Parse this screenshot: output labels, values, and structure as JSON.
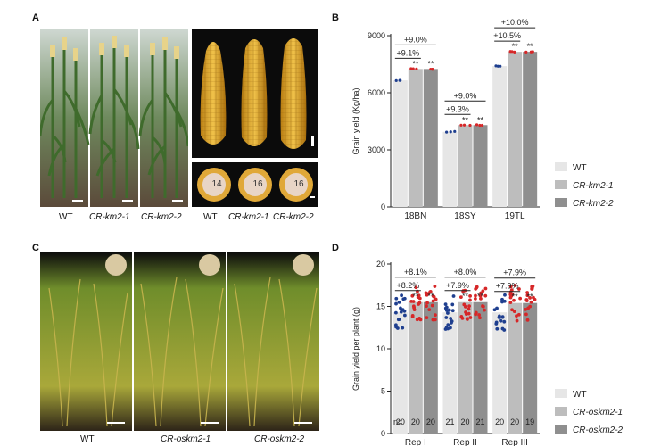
{
  "panels": {
    "A": {
      "letter": "A",
      "plant_labels": [
        "WT",
        "CR-km2-1",
        "CR-km2-2"
      ],
      "ear_labels": [
        "WT",
        "CR-km2-1",
        "CR-km2-2"
      ],
      "row_counts": [
        "14",
        "16",
        "16"
      ]
    },
    "C": {
      "letter": "C",
      "plant_labels": [
        "WT",
        "CR-oskm2-1",
        "CR-oskm2-2"
      ]
    }
  },
  "chart_data": [
    {
      "panel": "B",
      "type": "bar",
      "ylabel": "Grain yield (Kg/ha)",
      "ylim": [
        0,
        9000
      ],
      "yticks": [
        "0",
        "3000",
        "6000",
        "9000"
      ],
      "categories": [
        "18BN",
        "18SY",
        "19TL"
      ],
      "series": [
        {
          "name": "WT",
          "values": [
            6650,
            3950,
            7400
          ],
          "color": "#e6e6e6",
          "dot": "#1f3f8f"
        },
        {
          "name": "CR-km2-1",
          "values": [
            7250,
            4300,
            8150
          ],
          "color": "#bdbdbd",
          "dot": "#d62728"
        },
        {
          "name": "CR-km2-2",
          "values": [
            7250,
            4300,
            8150
          ],
          "color": "#8f8f8f",
          "dot": "#d62728"
        }
      ],
      "annotations": [
        {
          "group": "18BN",
          "top": "+9.0%",
          "bottom": "+9.1%",
          "stars": [
            "**",
            "**"
          ]
        },
        {
          "group": "18SY",
          "top": "+9.0%",
          "bottom": "+9.3%",
          "stars": [
            "**",
            "**"
          ]
        },
        {
          "group": "19TL",
          "top": "+10.0%",
          "bottom": "+10.5%",
          "stars": [
            "**",
            "**"
          ]
        }
      ],
      "legend_position": "right"
    },
    {
      "panel": "D",
      "type": "bar",
      "ylabel": "Grain yield per plant (g)",
      "ylim": [
        0,
        20
      ],
      "yticks": [
        "0",
        "5",
        "10",
        "15",
        "20"
      ],
      "categories": [
        "Rep I",
        "Rep II",
        "Rep III"
      ],
      "series": [
        {
          "name": "WT",
          "values": [
            14.3,
            14.3,
            14.3
          ],
          "color": "#e6e6e6",
          "dot": "#1f3f8f"
        },
        {
          "name": "CR-oskm2-1",
          "values": [
            15.5,
            15.5,
            15.4
          ],
          "color": "#bdbdbd",
          "dot": "#d62728"
        },
        {
          "name": "CR-oskm2-2",
          "values": [
            15.5,
            15.5,
            15.4
          ],
          "color": "#8f8f8f",
          "dot": "#d62728"
        }
      ],
      "n_label": "n=",
      "n_values": [
        [
          "20",
          "20",
          "20"
        ],
        [
          "21",
          "20",
          "21"
        ],
        [
          "20",
          "20",
          "19"
        ]
      ],
      "annotations": [
        {
          "group": "Rep I",
          "top": "+8.1%",
          "bottom": "+8.2%",
          "stars": [
            "**",
            "**"
          ]
        },
        {
          "group": "Rep II",
          "top": "+8.0%",
          "bottom": "+7.9%",
          "stars": [
            "**",
            "**"
          ]
        },
        {
          "group": "Rep III",
          "top": "+7.9%",
          "bottom": "+7.9%",
          "stars": [
            "**",
            "**"
          ]
        }
      ],
      "legend_position": "right"
    }
  ],
  "letters": {
    "B": "B",
    "D": "D"
  }
}
